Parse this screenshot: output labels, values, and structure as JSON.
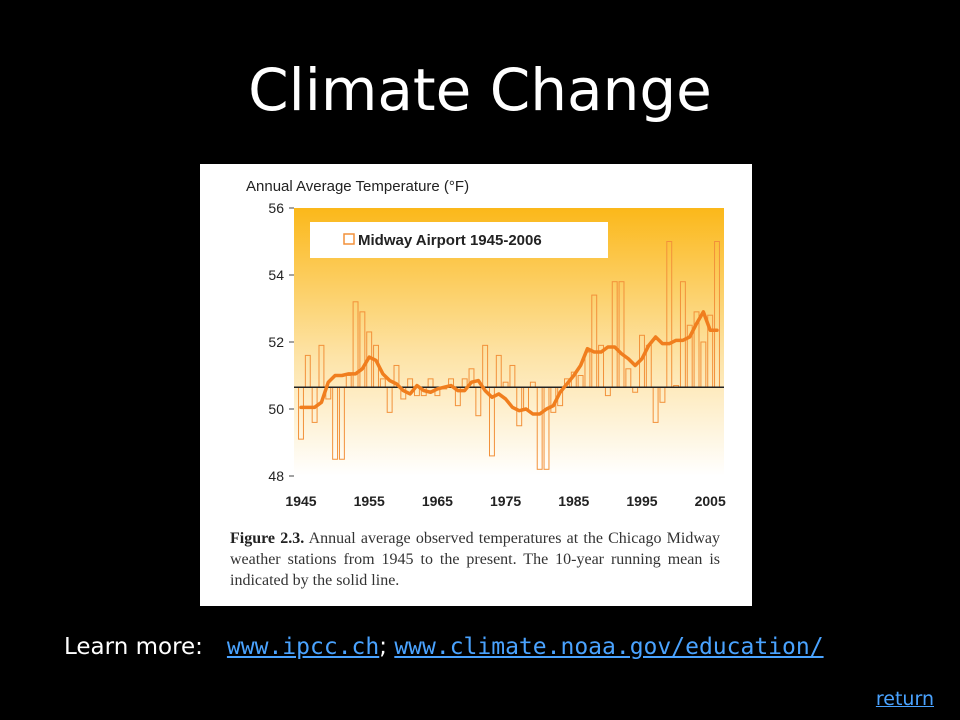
{
  "slide": {
    "title": "Climate Change",
    "learn_more_label": "Learn more:",
    "link_ipcc": "www.ipcc.ch",
    "separator": ";",
    "link_noaa": "www.climate.noaa.gov/education/",
    "return_label": "return"
  },
  "figure": {
    "caption_label": "Figure 2.3.",
    "caption_text": "Annual average observed temperatures at the Chicago Midway weather stations from 1945 to the present. The 10-year running mean is indicated by the solid line."
  },
  "chart_data": {
    "type": "bar",
    "title": "Annual Average Temperature (°F)",
    "legend": "Midway Airport 1945-2006",
    "legend_position": "top-left",
    "baseline": 50.65,
    "ylim": [
      48,
      56
    ],
    "yticks": [
      "48",
      "50",
      "52",
      "54",
      "56"
    ],
    "xlim": [
      1945,
      2006
    ],
    "xticks": [
      "1945",
      "1955",
      "1965",
      "1975",
      "1985",
      "1995",
      "2005"
    ],
    "colors": {
      "bars": "#f2913a",
      "line": "#f07e1e",
      "baseline": "#222222",
      "gradient_top": "#fbb81a",
      "gradient_bottom": "#ffffff"
    },
    "x": [
      1945,
      1946,
      1947,
      1948,
      1949,
      1950,
      1951,
      1952,
      1953,
      1954,
      1955,
      1956,
      1957,
      1958,
      1959,
      1960,
      1961,
      1962,
      1963,
      1964,
      1965,
      1966,
      1967,
      1968,
      1969,
      1970,
      1971,
      1972,
      1973,
      1974,
      1975,
      1976,
      1977,
      1978,
      1979,
      1980,
      1981,
      1982,
      1983,
      1984,
      1985,
      1986,
      1987,
      1988,
      1989,
      1990,
      1991,
      1992,
      1993,
      1994,
      1995,
      1996,
      1997,
      1998,
      1999,
      2000,
      2001,
      2002,
      2003,
      2004,
      2005,
      2006
    ],
    "values": [
      49.1,
      51.6,
      49.6,
      51.9,
      50.3,
      48.5,
      48.5,
      51.0,
      53.2,
      52.9,
      52.3,
      51.9,
      50.9,
      49.9,
      51.3,
      50.3,
      50.9,
      50.4,
      50.4,
      50.9,
      50.4,
      50.6,
      50.9,
      50.1,
      50.9,
      51.2,
      49.8,
      51.9,
      48.6,
      51.6,
      50.8,
      51.3,
      49.5,
      50.0,
      50.8,
      48.2,
      48.2,
      49.9,
      50.1,
      50.9,
      51.1,
      51.0,
      51.7,
      53.4,
      51.9,
      50.4,
      53.8,
      53.8,
      51.2,
      50.5,
      52.2,
      51.9,
      49.6,
      50.2,
      55.0,
      50.7,
      53.8,
      52.5,
      52.9,
      52.0,
      52.8,
      55.0
    ],
    "running_mean": [
      50.05,
      50.05,
      50.05,
      50.2,
      50.8,
      51.0,
      51.0,
      51.05,
      51.05,
      51.2,
      51.55,
      51.45,
      51.05,
      50.85,
      50.75,
      50.55,
      50.45,
      50.7,
      50.55,
      50.5,
      50.6,
      50.65,
      50.7,
      50.55,
      50.55,
      50.8,
      50.85,
      50.55,
      50.35,
      50.45,
      50.3,
      50.05,
      49.95,
      50.0,
      49.85,
      49.85,
      50.0,
      50.1,
      50.5,
      50.75,
      51.0,
      51.3,
      51.8,
      51.7,
      51.7,
      51.85,
      51.85,
      51.65,
      51.5,
      51.3,
      51.5,
      51.9,
      52.15,
      51.95,
      51.95,
      52.05,
      52.05,
      52.15,
      52.55,
      52.9,
      52.35,
      52.35
    ]
  }
}
